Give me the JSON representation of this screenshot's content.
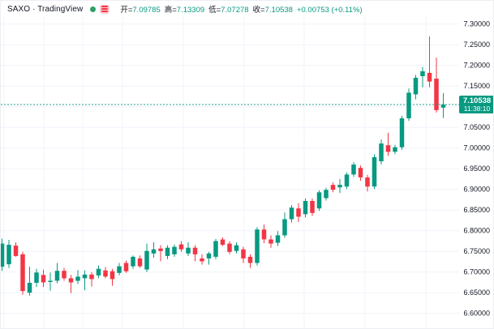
{
  "header": {
    "symbol_text": "SAXO · TradingView",
    "status_dot_color": "#2e9e63",
    "ohlc": {
      "open_label": "开=",
      "open_value": "7.09785",
      "high_label": "高=",
      "high_value": "7.13309",
      "low_label": "低=",
      "low_value": "7.07278",
      "close_label": "收=",
      "close_value": "7.10538",
      "change": "+0.00753 (+0.11%)"
    }
  },
  "price_label": {
    "price": "7.10538",
    "countdown": "11:38:10"
  },
  "colors": {
    "up": "#089981",
    "down": "#f23645",
    "grid": "#f0f3fa",
    "axis_text": "#131722",
    "current_line": "#089981",
    "label_bg": "#089981",
    "background": "#ffffff"
  },
  "chart_data": {
    "type": "candlestick",
    "title": "SAXO · TradingView",
    "current_price": 7.10538,
    "last_bar": {
      "open": 7.09785,
      "high": 7.13309,
      "low": 7.07278,
      "close": 7.10538,
      "change": 0.00753,
      "change_pct": 0.11
    },
    "y_axis": {
      "min": 6.56,
      "max": 7.315,
      "tick_step": 0.05,
      "grid_min": 6.6,
      "grid_max": 7.3,
      "labels": [
        "7.30000",
        "7.25000",
        "7.20000",
        "7.15000",
        "7.05000",
        "7.00000",
        "6.95000",
        "6.90000",
        "6.85000",
        "6.80000",
        "6.75000",
        "6.70000",
        "6.65000",
        "6.60000"
      ],
      "hidden_label_behind_price": "7.10000"
    },
    "x_axis": {
      "labels_visible": false
    },
    "legend_position": "top-left",
    "ohlc_order": [
      "open",
      "high",
      "low",
      "close"
    ],
    "candles": [
      [
        6.713,
        6.781,
        6.703,
        6.769
      ],
      [
        6.719,
        6.778,
        6.71,
        6.766
      ],
      [
        6.764,
        6.772,
        6.737,
        6.739
      ],
      [
        6.743,
        6.749,
        6.645,
        6.654
      ],
      [
        6.65,
        6.713,
        6.643,
        6.674
      ],
      [
        6.674,
        6.708,
        6.664,
        6.699
      ],
      [
        6.693,
        6.706,
        6.664,
        6.675
      ],
      [
        6.676,
        6.699,
        6.655,
        6.679
      ],
      [
        6.679,
        6.722,
        6.673,
        6.703
      ],
      [
        6.703,
        6.71,
        6.679,
        6.685
      ],
      [
        6.685,
        6.693,
        6.649,
        6.675
      ],
      [
        6.679,
        6.705,
        6.671,
        6.689
      ],
      [
        6.685,
        6.704,
        6.656,
        6.694
      ],
      [
        6.694,
        6.7,
        6.665,
        6.683
      ],
      [
        6.692,
        6.716,
        6.685,
        6.708
      ],
      [
        6.704,
        6.712,
        6.685,
        6.689
      ],
      [
        6.702,
        6.708,
        6.667,
        6.683
      ],
      [
        6.698,
        6.722,
        6.692,
        6.714
      ],
      [
        6.722,
        6.728,
        6.698,
        6.702
      ],
      [
        6.714,
        6.74,
        6.708,
        6.737
      ],
      [
        6.733,
        6.74,
        6.71,
        6.714
      ],
      [
        6.706,
        6.769,
        6.7,
        6.751
      ],
      [
        6.745,
        6.772,
        6.735,
        6.755
      ],
      [
        6.757,
        6.765,
        6.726,
        6.751
      ],
      [
        6.739,
        6.765,
        6.731,
        6.759
      ],
      [
        6.743,
        6.767,
        6.737,
        6.761
      ],
      [
        6.767,
        6.775,
        6.749,
        6.755
      ],
      [
        6.745,
        6.772,
        6.739,
        6.759
      ],
      [
        6.759,
        6.765,
        6.726,
        6.743
      ],
      [
        6.733,
        6.743,
        6.718,
        6.726
      ],
      [
        6.733,
        6.749,
        6.718,
        6.745
      ],
      [
        6.737,
        6.78,
        6.731,
        6.775
      ],
      [
        6.779,
        6.784,
        6.763,
        6.766
      ],
      [
        6.769,
        6.775,
        6.743,
        6.749
      ],
      [
        6.751,
        6.772,
        6.745,
        6.765
      ],
      [
        6.755,
        6.761,
        6.722,
        6.733
      ],
      [
        6.737,
        6.743,
        6.71,
        6.722
      ],
      [
        6.722,
        6.809,
        6.716,
        6.803
      ],
      [
        6.803,
        6.815,
        6.77,
        6.779
      ],
      [
        6.779,
        6.789,
        6.759,
        6.769
      ],
      [
        6.771,
        6.799,
        6.763,
        6.789
      ],
      [
        6.789,
        6.844,
        6.783,
        6.828
      ],
      [
        6.828,
        6.862,
        6.82,
        6.856
      ],
      [
        6.854,
        6.867,
        6.821,
        6.834
      ],
      [
        6.84,
        6.878,
        6.832,
        6.872
      ],
      [
        6.872,
        6.878,
        6.836,
        6.843
      ],
      [
        6.854,
        6.898,
        6.848,
        6.893
      ],
      [
        6.879,
        6.904,
        6.873,
        6.899
      ],
      [
        6.911,
        6.917,
        6.893,
        6.899
      ],
      [
        6.905,
        6.925,
        6.891,
        6.911
      ],
      [
        6.907,
        6.941,
        6.901,
        6.936
      ],
      [
        6.936,
        6.966,
        6.93,
        6.96
      ],
      [
        6.952,
        6.958,
        6.921,
        6.929
      ],
      [
        6.929,
        6.935,
        6.895,
        6.907
      ],
      [
        6.907,
        6.985,
        6.901,
        6.978
      ],
      [
        6.968,
        7.021,
        6.96,
        7.011
      ],
      [
        7.007,
        7.037,
        6.981,
        6.991
      ],
      [
        6.991,
        7.008,
        6.985,
        7.002
      ],
      [
        7.002,
        7.078,
        6.996,
        7.072
      ],
      [
        7.072,
        7.144,
        7.066,
        7.134
      ],
      [
        7.13,
        7.177,
        7.118,
        7.17
      ],
      [
        7.174,
        7.196,
        7.147,
        7.186
      ],
      [
        7.182,
        7.27,
        7.147,
        7.161
      ],
      [
        7.168,
        7.219,
        7.086,
        7.092
      ],
      [
        7.09785,
        7.13309,
        7.07278,
        7.10538
      ]
    ]
  }
}
